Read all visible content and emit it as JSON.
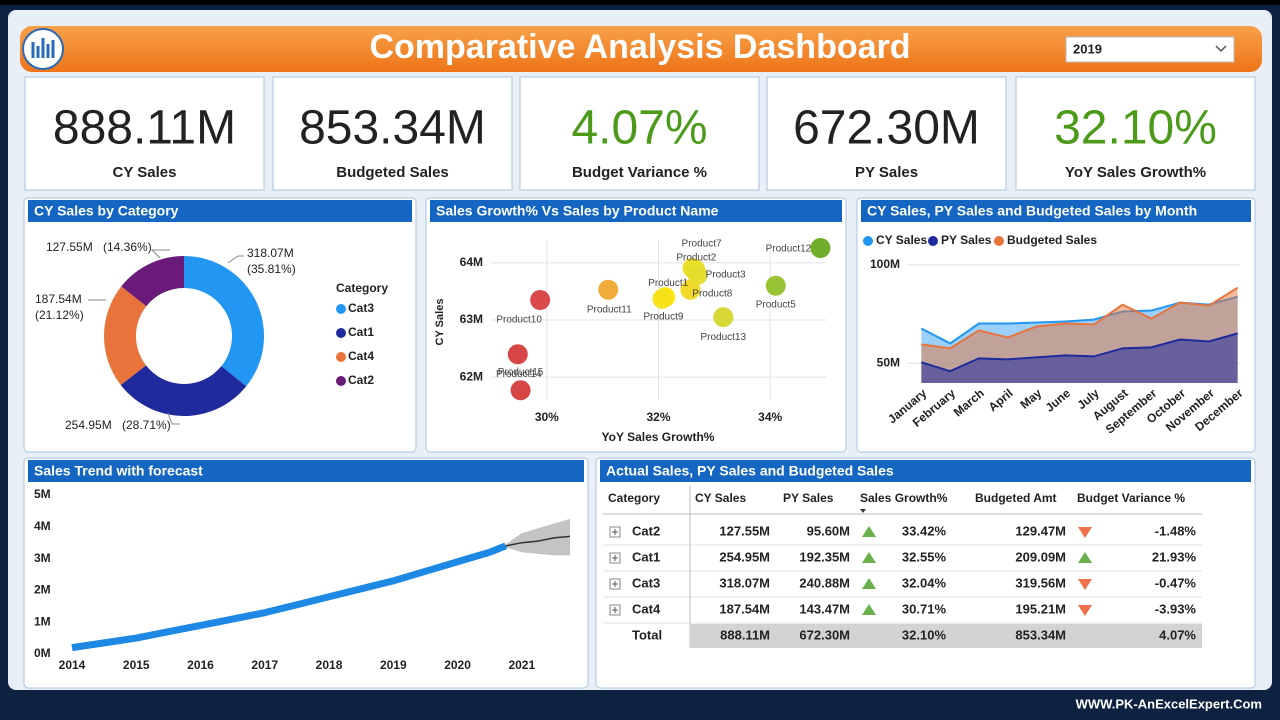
{
  "header": {
    "title": "Comparative Analysis Dashboard",
    "year": "2019",
    "footer": "WWW.PK-AnExcelExpert.Com"
  },
  "kpis": [
    {
      "value": "888.11M",
      "label": "CY Sales",
      "color": "#222222"
    },
    {
      "value": "853.34M",
      "label": "Budgeted Sales",
      "color": "#222222"
    },
    {
      "value": "4.07%",
      "label": "Budget Variance %",
      "color": "#4c9a1a"
    },
    {
      "value": "672.30M",
      "label": "PY Sales",
      "color": "#222222"
    },
    {
      "value": "32.10%",
      "label": "YoY Sales Growth%",
      "color": "#4c9a1a"
    }
  ],
  "chart_data": [
    {
      "type": "pie",
      "donut": true,
      "title": "CY Sales by Category",
      "legend_title": "Category",
      "categories": [
        "Cat3",
        "Cat1",
        "Cat4",
        "Cat2"
      ],
      "values": [
        318.07,
        254.95,
        187.54,
        127.55
      ],
      "value_labels": [
        "318.07M",
        "254.95M",
        "187.54M",
        "127.55M"
      ],
      "percent_labels": [
        "(35.81%)",
        "(28.71%)",
        "(21.12%)",
        "(14.36%)"
      ],
      "colors": [
        "#2196f3",
        "#1f2a9c",
        "#e8743b",
        "#6a1b7a"
      ]
    },
    {
      "type": "scatter",
      "title": "Sales Growth% Vs Sales by Product Name",
      "x_label": "YoY Sales Growth%",
      "y_label": "CY Sales",
      "labels": [
        "Product10",
        "Product11",
        "Product1",
        "Product9",
        "Product8",
        "Product7",
        "Product2",
        "Product3",
        "Product13",
        "Product5",
        "Product12",
        "Product14",
        "Product15"
      ],
      "x": [
        29.88,
        31.1,
        32.12,
        32.07,
        32.57,
        32.61,
        32.66,
        32.7,
        33.16,
        34.1,
        34.9,
        29.48,
        29.53
      ],
      "values": [
        63.35,
        63.53,
        63.4,
        63.37,
        63.53,
        63.91,
        63.88,
        63.79,
        63.05,
        63.6,
        64.26,
        62.4,
        61.77
      ],
      "colors": [
        "#d94040",
        "#f0a830",
        "#ffe600",
        "#f7e21a",
        "#f2d71e",
        "#eee21e",
        "#e8df2a",
        "#e5dc2c",
        "#d4d62a",
        "#93bf2a",
        "#6aaa1e",
        "#d43c3c",
        "#d43c3c"
      ],
      "xlim": [
        29,
        35
      ],
      "xticks": [
        {
          "value": 30,
          "label": "30%"
        },
        {
          "value": 32,
          "label": "32%"
        },
        {
          "value": 34,
          "label": "34%"
        }
      ],
      "ylim": [
        61.6,
        64.4
      ],
      "yticks": [
        {
          "value": 62,
          "label": "62M"
        },
        {
          "value": 63,
          "label": "63M"
        },
        {
          "value": 64,
          "label": "64M"
        }
      ],
      "grid": true
    },
    {
      "type": "area",
      "title": "CY Sales, PY Sales and Budgeted Sales by Month",
      "categories": [
        "January",
        "February",
        "March",
        "April",
        "May",
        "June",
        "July",
        "August",
        "September",
        "October",
        "November",
        "December"
      ],
      "series": [
        {
          "name": "CY Sales",
          "color": "#2196f3",
          "values": [
            67.7,
            60.1,
            70.2,
            70.2,
            70.7,
            71.2,
            72.2,
            76.3,
            76.8,
            80.8,
            79.8,
            83.8
          ]
        },
        {
          "name": "PY Sales",
          "color": "#1f2a9c",
          "values": [
            50.5,
            46.0,
            52.5,
            52.0,
            53.0,
            54.0,
            53.5,
            57.6,
            58.1,
            62.1,
            61.1,
            65.2
          ]
        },
        {
          "name": "Budgeted Sales",
          "color": "#e8743b",
          "values": [
            59.6,
            57.6,
            66.7,
            63.1,
            68.7,
            70.2,
            69.7,
            79.8,
            72.7,
            80.8,
            79.3,
            88.4
          ]
        }
      ],
      "ylim": [
        40,
        105
      ],
      "yticks": [
        {
          "value": 50,
          "label": "50M"
        },
        {
          "value": 100,
          "label": "100M"
        }
      ],
      "grid": true
    },
    {
      "type": "line",
      "title": "Sales Trend with forecast",
      "color": "#1e88e5",
      "x": [
        2014,
        2014.5,
        2015,
        2015.5,
        2016,
        2016.5,
        2017,
        2017.5,
        2018,
        2018.5,
        2019,
        2019.5,
        2020,
        2020.5,
        2020.75
      ],
      "values": [
        0.2,
        0.35,
        0.5,
        0.7,
        0.9,
        1.1,
        1.3,
        1.55,
        1.8,
        2.05,
        2.3,
        2.6,
        2.9,
        3.2,
        3.4
      ],
      "forecast": {
        "x": [
          2020.75,
          2021,
          2021.25,
          2021.5,
          2021.75
        ],
        "values": [
          3.4,
          3.5,
          3.55,
          3.65,
          3.7
        ],
        "lower": [
          3.35,
          3.2,
          3.15,
          3.1,
          3.1
        ],
        "upper": [
          3.45,
          3.8,
          3.95,
          4.1,
          4.25
        ],
        "color": "#333333",
        "band_color": "#c4c4c4"
      },
      "xlim": [
        2014,
        2021.75
      ],
      "xticks": [
        2014,
        2015,
        2016,
        2017,
        2018,
        2019,
        2020,
        2021
      ],
      "ylim": [
        0,
        5
      ],
      "yticks": [
        {
          "value": 0,
          "label": "0M"
        },
        {
          "value": 1,
          "label": "1M"
        },
        {
          "value": 2,
          "label": "2M"
        },
        {
          "value": 3,
          "label": "3M"
        },
        {
          "value": 4,
          "label": "4M"
        },
        {
          "value": 5,
          "label": "5M"
        }
      ],
      "grid": false
    }
  ],
  "table": {
    "title": "Actual Sales, PY Sales and Budgeted Sales",
    "columns": [
      "Category",
      "CY Sales",
      "PY Sales",
      "Sales Growth%",
      "Budgeted Amt",
      "Budget Variance %"
    ],
    "rows": [
      [
        "Cat2",
        "127.55M",
        "95.60M",
        "33.42%",
        "129.47M",
        "-1.48%"
      ],
      [
        "Cat1",
        "254.95M",
        "192.35M",
        "32.55%",
        "209.09M",
        "21.93%"
      ],
      [
        "Cat3",
        "318.07M",
        "240.88M",
        "32.04%",
        "319.56M",
        "-0.47%"
      ],
      [
        "Cat4",
        "187.54M",
        "143.47M",
        "30.71%",
        "195.21M",
        "-3.93%"
      ]
    ],
    "growth_trend": [
      "up",
      "up",
      "up",
      "up"
    ],
    "variance_trend": [
      "down",
      "up",
      "down",
      "down"
    ],
    "total": [
      "Total",
      "888.11M",
      "672.30M",
      "32.10%",
      "853.34M",
      "4.07%"
    ]
  }
}
